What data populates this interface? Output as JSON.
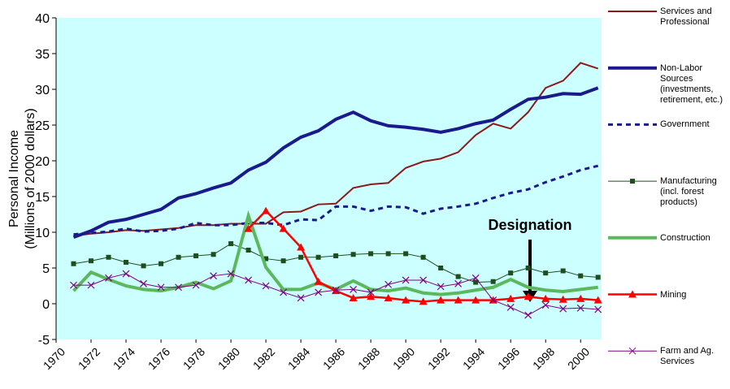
{
  "chart_data": {
    "type": "line",
    "y_label": [
      "Personal Income",
      "(Millions of 2000 dollars)"
    ],
    "annotation": "Designation",
    "x": [
      1971,
      1972,
      1973,
      1974,
      1975,
      1976,
      1977,
      1978,
      1979,
      1980,
      1981,
      1982,
      1983,
      1984,
      1985,
      1986,
      1987,
      1988,
      1989,
      1990,
      1991,
      1992,
      1993,
      1994,
      1995,
      1996,
      1997,
      1998,
      1999,
      2000,
      2001
    ],
    "xlim": [
      1970,
      2001.2
    ],
    "xticks": [
      1970,
      1972,
      1974,
      1976,
      1978,
      1980,
      1982,
      1984,
      1986,
      1988,
      1990,
      1992,
      1994,
      1996,
      1998,
      2000
    ],
    "ylim": [
      -5,
      40
    ],
    "yticks": [
      -5,
      0,
      5,
      10,
      15,
      20,
      25,
      30,
      35,
      40
    ],
    "background": "#ccffff",
    "series": [
      {
        "name": "Services and Professional",
        "color": "#8b1a1a",
        "width": 2,
        "marker": "none",
        "dash": false,
        "values": [
          9.5,
          9.8,
          10.0,
          10.3,
          10.2,
          10.4,
          10.6,
          11.0,
          11.0,
          11.2,
          11.2,
          11.2,
          12.8,
          12.9,
          13.9,
          14.0,
          16.2,
          16.7,
          16.9,
          19.0,
          19.9,
          20.3,
          21.2,
          23.6,
          25.2,
          24.5,
          26.8,
          30.2,
          31.2,
          33.7,
          32.9
        ]
      },
      {
        "name": "Non-Labor Sources (investments, retirement, etc.)",
        "color": "#1a1a8c",
        "width": 4,
        "marker": "none",
        "dash": false,
        "values": [
          9.3,
          10.2,
          11.4,
          11.8,
          12.5,
          13.2,
          14.8,
          15.4,
          16.2,
          16.9,
          18.7,
          19.8,
          21.8,
          23.3,
          24.2,
          25.8,
          26.8,
          25.6,
          24.9,
          24.7,
          24.4,
          24.0,
          24.5,
          25.2,
          25.7,
          27.2,
          28.6,
          28.9,
          29.4,
          29.3,
          30.2
        ]
      },
      {
        "name": "Government",
        "color": "#1a1a8c",
        "width": 3,
        "marker": "none",
        "dash": true,
        "values": [
          9.7,
          9.9,
          10.1,
          10.5,
          10.1,
          10.2,
          10.5,
          11.3,
          11.0,
          11.0,
          11.3,
          11.3,
          11.0,
          11.8,
          11.7,
          13.6,
          13.6,
          13.0,
          13.6,
          13.5,
          12.6,
          13.3,
          13.6,
          14.0,
          14.8,
          15.5,
          16.0,
          17.0,
          17.8,
          18.7,
          19.3
        ]
      },
      {
        "name": "Manufacturing (incl. forest products)",
        "color": "#1e4d1e",
        "width": 1,
        "marker": "square",
        "dash": false,
        "values": [
          5.6,
          6.0,
          6.5,
          5.8,
          5.3,
          5.6,
          6.5,
          6.7,
          6.9,
          8.4,
          7.5,
          6.3,
          6.0,
          6.5,
          6.5,
          6.7,
          6.9,
          7.0,
          7.0,
          7.0,
          6.5,
          5.0,
          3.8,
          3.0,
          3.1,
          4.3,
          5.0,
          4.3,
          4.6,
          3.9,
          3.7
        ]
      },
      {
        "name": "Construction",
        "color": "#5cb85c",
        "width": 4,
        "marker": "none",
        "dash": false,
        "values": [
          1.8,
          4.4,
          3.4,
          2.5,
          2.0,
          1.8,
          2.3,
          3.0,
          2.1,
          3.2,
          12.3,
          5.1,
          2.0,
          2.0,
          2.9,
          2.0,
          3.2,
          2.0,
          1.8,
          2.2,
          1.5,
          1.3,
          1.5,
          1.9,
          2.3,
          3.4,
          2.3,
          1.9,
          1.7,
          2.0,
          2.3
        ]
      },
      {
        "name": "Mining",
        "color": "#ff0000",
        "width": 2.5,
        "marker": "triangle",
        "dash": false,
        "values": [
          null,
          null,
          null,
          null,
          null,
          null,
          null,
          null,
          null,
          null,
          10.5,
          13.0,
          10.5,
          7.9,
          3.1,
          1.8,
          0.8,
          1.0,
          0.8,
          0.5,
          0.3,
          0.5,
          0.5,
          0.5,
          0.5,
          0.7,
          1.0,
          0.7,
          0.6,
          0.7,
          0.5
        ]
      },
      {
        "name": "Farm and Ag. Services",
        "color": "#800080",
        "width": 1,
        "marker": "x",
        "dash": false,
        "values": [
          2.6,
          2.6,
          3.6,
          4.2,
          2.8,
          2.3,
          2.3,
          2.6,
          3.9,
          4.2,
          3.3,
          2.5,
          1.6,
          0.8,
          1.6,
          1.9,
          2.0,
          1.6,
          2.7,
          3.3,
          3.3,
          2.4,
          2.8,
          3.6,
          0.5,
          -0.5,
          -1.6,
          -0.2,
          -0.7,
          -0.6,
          -0.8
        ]
      }
    ]
  }
}
